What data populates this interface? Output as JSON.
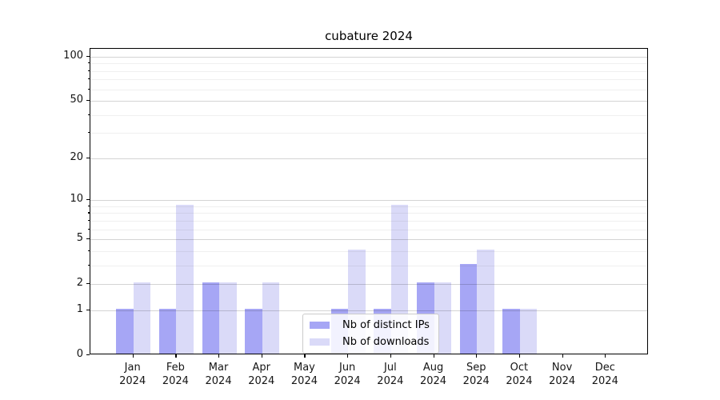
{
  "title": "cubature 2024",
  "chart_data": {
    "type": "bar",
    "title": "cubature 2024",
    "categories": [
      {
        "month": "Jan",
        "year": "2024"
      },
      {
        "month": "Feb",
        "year": "2024"
      },
      {
        "month": "Mar",
        "year": "2024"
      },
      {
        "month": "Apr",
        "year": "2024"
      },
      {
        "month": "May",
        "year": "2024"
      },
      {
        "month": "Jun",
        "year": "2024"
      },
      {
        "month": "Jul",
        "year": "2024"
      },
      {
        "month": "Aug",
        "year": "2024"
      },
      {
        "month": "Sep",
        "year": "2024"
      },
      {
        "month": "Oct",
        "year": "2024"
      },
      {
        "month": "Nov",
        "year": "2024"
      },
      {
        "month": "Dec",
        "year": "2024"
      }
    ],
    "series": [
      {
        "name": "Nb of distinct IPs",
        "color": "#a6a6f5",
        "values": [
          1,
          1,
          2,
          1,
          0,
          1,
          1,
          2,
          3,
          1,
          0,
          0
        ]
      },
      {
        "name": "Nb of downloads",
        "color": "#dadaf8",
        "values": [
          2,
          9,
          2,
          2,
          0,
          4,
          9,
          2,
          4,
          1,
          0,
          0
        ]
      }
    ],
    "xlabel": "",
    "ylabel": "",
    "yscale": "log1p",
    "ylim": [
      0,
      113
    ],
    "yticks": [
      0,
      1,
      2,
      5,
      10,
      20,
      50,
      100
    ],
    "minor_yticks": [
      3,
      4,
      6,
      7,
      8,
      9,
      30,
      40,
      60,
      70,
      80,
      90
    ],
    "grid": true,
    "legend_position": "lower center"
  }
}
